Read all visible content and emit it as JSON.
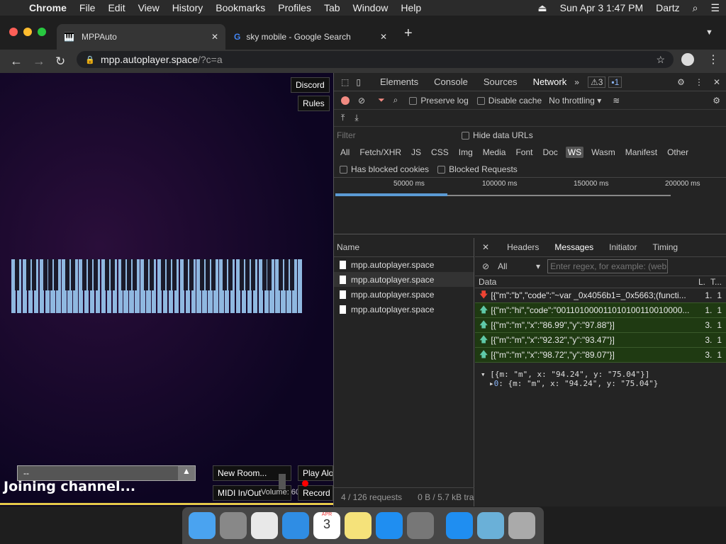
{
  "menubar": {
    "apple": "",
    "app": "Chrome",
    "items": [
      "File",
      "Edit",
      "View",
      "History",
      "Bookmarks",
      "Profiles",
      "Tab",
      "Window",
      "Help"
    ],
    "clock": "Sun Apr 3  1:47 PM",
    "user": "Dartz"
  },
  "tabs": [
    {
      "title": "MPPAuto",
      "icon": "piano-icon",
      "active": true
    },
    {
      "title": "sky mobile - Google Search",
      "icon": "google-icon",
      "active": false
    }
  ],
  "address": {
    "host": "mpp.autoplayer.space",
    "path": "/?c=a"
  },
  "page": {
    "discord": "Discord",
    "rules": "Rules",
    "channel_value": "--",
    "status": "Joining channel...",
    "new_room": "New Room...",
    "play_alone": "Play Alo",
    "midi": "MIDI In/Out",
    "volume": "Volume: 60%",
    "record": "Record"
  },
  "devtools": {
    "tabs": [
      "Elements",
      "Console",
      "Sources",
      "Network"
    ],
    "active_tab": "Network",
    "warnings": "3",
    "messages_count": "1",
    "preserve_log": "Preserve log",
    "disable_cache": "Disable cache",
    "throttling": "No throttling",
    "filter_placeholder": "Filter",
    "hide_data_urls": "Hide data URLs",
    "types": [
      "All",
      "Fetch/XHR",
      "JS",
      "CSS",
      "Img",
      "Media",
      "Font",
      "Doc",
      "WS",
      "Wasm",
      "Manifest",
      "Other"
    ],
    "active_type": "WS",
    "blocked_cookies": "Has blocked cookies",
    "blocked_requests": "Blocked Requests",
    "timeline_ticks": [
      "50000 ms",
      "100000 ms",
      "150000 ms",
      "200000 ms"
    ],
    "name_header": "Name",
    "requests": [
      "mpp.autoplayer.space",
      "mpp.autoplayer.space",
      "mpp.autoplayer.space",
      "mpp.autoplayer.space"
    ],
    "detail_tabs": [
      "Headers",
      "Messages",
      "Initiator",
      "Timing"
    ],
    "active_detail": "Messages",
    "msg_filter": "All",
    "regex_placeholder": "Enter regex, for example: (web",
    "cols": [
      "Data",
      "L.",
      "T..."
    ],
    "messages": [
      {
        "dir": "down",
        "data": "[{\"m\":\"b\",\"code\":\"~var _0x4056b1=_0x5663;(functi...",
        "len": "1.",
        "time": "1"
      },
      {
        "dir": "up",
        "data": "[{\"m\":\"hi\",\"code\":\"001101000011010100110010000...",
        "len": "1.",
        "time": "1"
      },
      {
        "dir": "up",
        "data": "[{\"m\":\"m\",\"x\":\"86.99\",\"y\":\"97.88\"}]",
        "len": "3.",
        "time": "1"
      },
      {
        "dir": "up",
        "data": "[{\"m\":\"m\",\"x\":\"92.32\",\"y\":\"93.47\"}]",
        "len": "3.",
        "time": "1"
      },
      {
        "dir": "up",
        "data": "[{\"m\":\"m\",\"x\":\"98.72\",\"y\":\"89.07\"}]",
        "len": "3.",
        "time": "1"
      }
    ],
    "preview_line1": "[{m: \"m\", x: \"94.24\", y: \"75.04\"}]",
    "preview_line2_key": "0",
    "preview_line2": ": {m: \"m\", x: \"94.24\", y: \"75.04\"}",
    "status_requests": "4 / 126 requests",
    "status_size": "0 B / 5.7 kB tra"
  },
  "dock": [
    "Finder",
    "Launchpad",
    "Chrome",
    "Safari",
    "Calendar",
    "Notes",
    "App Store",
    "System Preferences",
    "App Store",
    "Downloads",
    "Trash"
  ],
  "calendar": {
    "month": "APR",
    "day": "3"
  }
}
